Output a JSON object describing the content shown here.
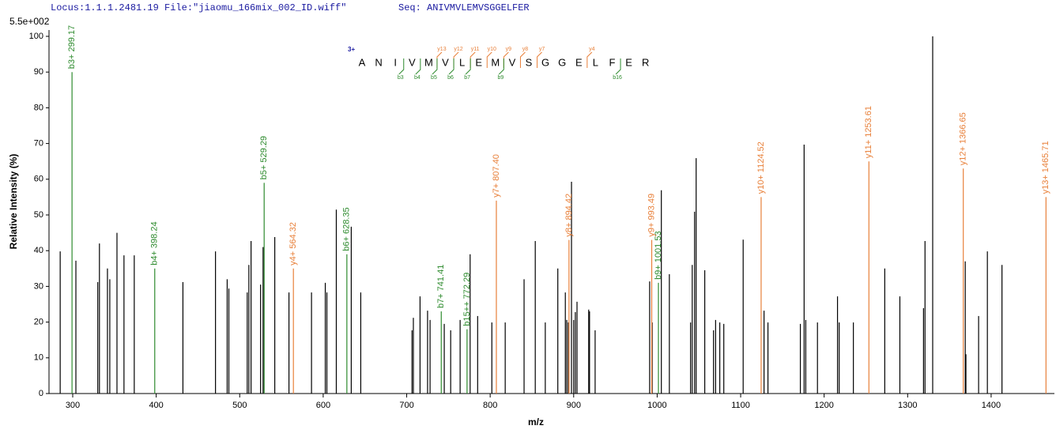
{
  "chart_data": {
    "type": "stem",
    "header": {
      "locus": "Locus:1.1.1.2481.19 File:\"jiaomu_166mix_002_ID.wiff\"",
      "seq": "Seq: ANIVMVLEMVSGGELFER"
    },
    "scale_label": "5.5e+002",
    "x_label": "m/z",
    "y_label": "Relative  Intensity (%)",
    "xlim": [
      271.6,
      1475.8
    ],
    "ylim": [
      0,
      101
    ],
    "xticks": [
      300,
      400,
      500,
      600,
      700,
      800,
      900,
      1000,
      1100,
      1200,
      1300,
      1400
    ],
    "yticks": [
      0,
      10,
      20,
      30,
      40,
      50,
      60,
      70,
      80,
      90,
      100
    ],
    "peaks": {
      "color": "#000000",
      "x": [
        285,
        303.8,
        330,
        332,
        341.6,
        344.4,
        353,
        361.4,
        373.7,
        432,
        471,
        485,
        487,
        509,
        511,
        513.6,
        525,
        528,
        542,
        559,
        586,
        602.5,
        604.4,
        615.7,
        633.6,
        645,
        706.4,
        708,
        716,
        725,
        728,
        745,
        752.7,
        764,
        776,
        785,
        802,
        818,
        840.6,
        854,
        866,
        881,
        890,
        891.7,
        893.6,
        897.4,
        900,
        902,
        904,
        918,
        919,
        925.7,
        991,
        994,
        1005,
        1014.6,
        1040,
        1042,
        1044.8,
        1046.7,
        1057,
        1067.5,
        1070,
        1075,
        1079.8,
        1103,
        1128,
        1132.7,
        1171.5,
        1176,
        1178,
        1192,
        1216,
        1218,
        1235,
        1272.6,
        1290.7,
        1319,
        1320.8,
        1330,
        1369,
        1369.8,
        1385,
        1395.5,
        1413
      ],
      "values": [
        39.8,
        37.2,
        31.2,
        42,
        35,
        32,
        45,
        38.7,
        38.7,
        31.2,
        39.8,
        32,
        29.4,
        28.3,
        36,
        42.7,
        30.5,
        41,
        43.8,
        28.3,
        28.3,
        31,
        28.3,
        51.5,
        46.7,
        28.3,
        17.7,
        21.2,
        27.2,
        23.2,
        20.6,
        19.5,
        17.7,
        20.6,
        39,
        21.7,
        19.9,
        19.9,
        32,
        42.7,
        19.9,
        35,
        28.3,
        20.6,
        19.9,
        59.3,
        20.6,
        22.8,
        25.7,
        23.5,
        23,
        17.7,
        31.4,
        19.9,
        56.9,
        33.4,
        19.9,
        36,
        50.9,
        65.9,
        34.5,
        17.7,
        20.6,
        19.9,
        19.5,
        43.1,
        23.2,
        19.9,
        19.5,
        69.7,
        20.6,
        19.9,
        27.2,
        19.9,
        19.9,
        35,
        27.2,
        23.9,
        42.7,
        100,
        37,
        11,
        21.7,
        39.8,
        36
      ]
    },
    "annotated": [
      {
        "color": "#2e8b2e",
        "x": [
          299.17,
          398.24,
          529.29,
          628.35,
          741.41,
          772.29,
          1001.53
        ],
        "values": [
          90,
          35,
          59,
          39,
          23,
          18,
          31
        ],
        "labels": [
          "b3+ 299.17",
          "b4+ 398.24",
          "b5+ 529.29",
          "b6+ 628.35",
          "b7+ 741.41",
          "b15++ 772.29",
          "b9+ 1001.53"
        ]
      },
      {
        "color": "#e8803a",
        "x": [
          564.32,
          807.4,
          894.42,
          993.49,
          1124.52,
          1253.61,
          1366.65,
          1465.71
        ],
        "values": [
          35,
          54,
          43,
          43,
          55,
          65,
          63,
          55
        ],
        "labels": [
          "y4+ 564.32",
          "y7+ 807.40",
          "y8+ 894.42",
          "y9+ 993.49",
          "y10+ 1124.52",
          "y11+ 1253.61",
          "y12+ 1366.65",
          "y13+ 1465.71"
        ]
      }
    ],
    "sequence": {
      "charge": "3+",
      "residues": [
        "A",
        "N",
        "I",
        "V",
        "M",
        "V",
        "L",
        "E",
        "M",
        "V",
        "S",
        "G",
        "G",
        "E",
        "L",
        "F",
        "E",
        "R"
      ],
      "y_ions": [
        "y13",
        "y12",
        "y11",
        "y10",
        "y9",
        "y8",
        "y7",
        "y4"
      ],
      "b_ions": [
        "b3",
        "b4",
        "b5",
        "b6",
        "b7",
        "b9",
        "b16"
      ]
    }
  }
}
